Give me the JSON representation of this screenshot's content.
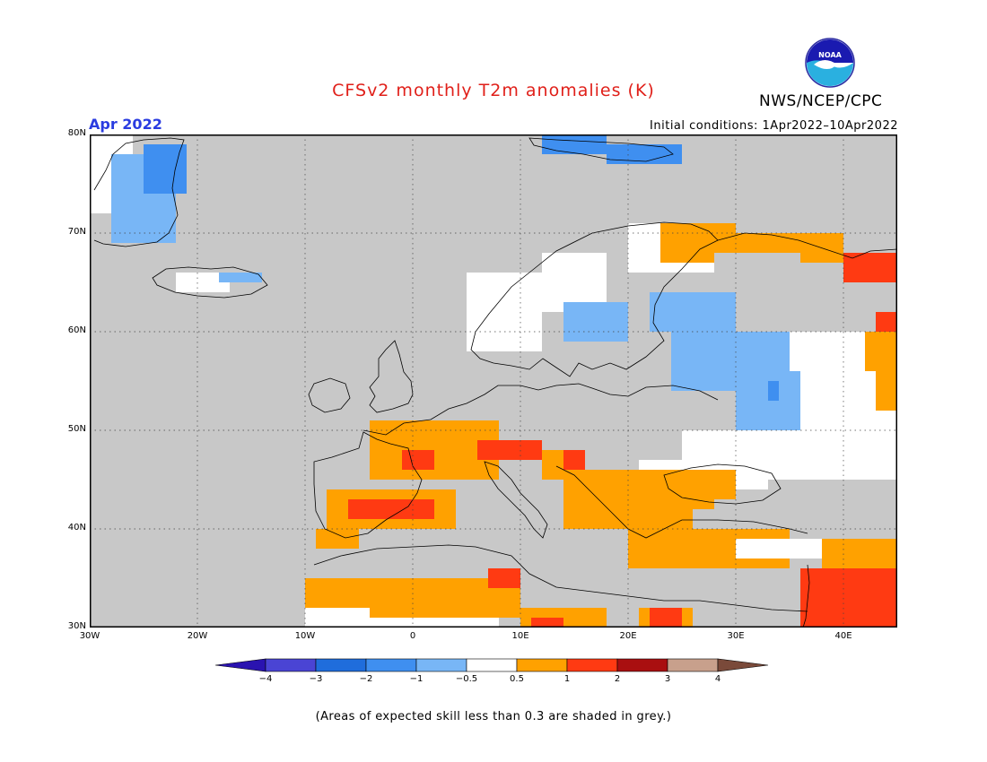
{
  "header": {
    "title": "CFSv2 monthly T2m anomalies (K)",
    "valid_month": "Apr 2022",
    "initial_conditions": "Initial conditions: 1Apr2022–10Apr2022",
    "agency": "NWS/NCEP/CPC",
    "logo_text": "NOAA",
    "logo_icon": "noaa-logo-icon"
  },
  "map": {
    "lat_labels": [
      "80N",
      "70N",
      "60N",
      "50N",
      "40N",
      "30N"
    ],
    "lon_labels": [
      "30W",
      "20W",
      "10W",
      "0",
      "10E",
      "20E",
      "30E",
      "40E"
    ],
    "lat_range": [
      30,
      80
    ],
    "lon_range": [
      -30,
      45
    ],
    "grid": "dotted",
    "land_fill_default": "#c8c8c8"
  },
  "colorbar": {
    "labels": [
      "−4",
      "−3",
      "−2",
      "−1",
      "−0.5",
      "0.5",
      "1",
      "2",
      "3",
      "4"
    ],
    "colors": [
      "#2a13b0",
      "#4a44d4",
      "#1f6ddc",
      "#3f8ff0",
      "#78b6f6",
      "#ffffff",
      "#ffa100",
      "#ff3a12",
      "#a90f10",
      "#c8a08c",
      "#7a4a3a"
    ]
  },
  "footer": {
    "skill_note": "(Areas of expected skill less than 0.3 are shaded in grey.)"
  },
  "palette": {
    "grey": "#c8c8c8",
    "white": "#ffffff",
    "orange": "#ffa100",
    "red": "#ff3a12",
    "lightblue": "#78b6f6",
    "blue": "#3f8ff0"
  }
}
